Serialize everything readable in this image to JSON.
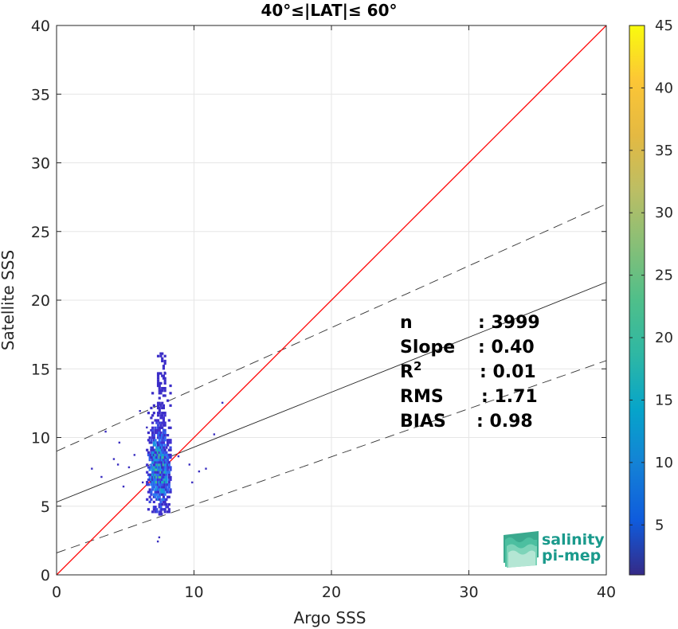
{
  "chart_data": {
    "type": "heatmap",
    "title": "40°≤|LAT|≤ 60°",
    "xlabel": "Argo SSS",
    "ylabel": "Satellite SSS",
    "xlim": [
      0,
      40
    ],
    "ylim": [
      0,
      40
    ],
    "xticks": [
      "0",
      "10",
      "20",
      "30",
      "40"
    ],
    "yticks": [
      "0",
      "5",
      "10",
      "15",
      "20",
      "25",
      "30",
      "35",
      "40"
    ],
    "grid": true,
    "colorbar": {
      "colormap": "parula",
      "range": [
        1,
        45
      ],
      "ticks": [
        "5",
        "10",
        "15",
        "20",
        "25",
        "30",
        "35",
        "40",
        "45"
      ]
    },
    "lines": {
      "identity": {
        "slope": 1,
        "intercept": 0,
        "color": "#ff0000"
      },
      "fit": {
        "slope": 0.4,
        "intercept": 5.3,
        "color": "#000000"
      },
      "fit_upper": {
        "slope": 0.45,
        "intercept": 9.0,
        "dashed": true
      },
      "fit_lower": {
        "slope": 0.35,
        "intercept": 1.6,
        "dashed": true
      }
    },
    "density_cluster": {
      "x_center": 7.4,
      "y_center": 7.8,
      "x_range": [
        6.5,
        8.2
      ],
      "y_range": [
        4.5,
        16.2
      ],
      "peak_count": 27
    },
    "scatter_points": [
      [
        2.5,
        7.8
      ],
      [
        3.2,
        7.2
      ],
      [
        3.5,
        10.5
      ],
      [
        4.1,
        8.5
      ],
      [
        4.5,
        9.7
      ],
      [
        4.4,
        8.1
      ],
      [
        4.8,
        6.5
      ],
      [
        5.2,
        7.9
      ],
      [
        5.6,
        8.8
      ],
      [
        6.0,
        12.0
      ],
      [
        6.2,
        6.8
      ],
      [
        6.5,
        10.8
      ],
      [
        8.8,
        8.7
      ],
      [
        9.6,
        8.1
      ],
      [
        9.8,
        6.8
      ],
      [
        10.3,
        7.6
      ],
      [
        10.8,
        7.8
      ],
      [
        11.4,
        10.3
      ],
      [
        12.0,
        12.6
      ],
      [
        7.4,
        2.8
      ],
      [
        7.3,
        2.5
      ],
      [
        7.6,
        4.5
      ],
      [
        7.8,
        14.8
      ],
      [
        7.5,
        16.2
      ]
    ],
    "stats": [
      {
        "label": "n",
        "value": ": 3999"
      },
      {
        "label": "Slope",
        "value": ": 0.40"
      },
      {
        "label": "R",
        "sup": "2",
        "value": ": 0.01"
      },
      {
        "label": "RMS",
        "value": ": 1.71"
      },
      {
        "label": "BIAS",
        "value": ": 0.98"
      }
    ]
  },
  "logo": {
    "line1": "salinity",
    "line2": "pi-mep"
  }
}
